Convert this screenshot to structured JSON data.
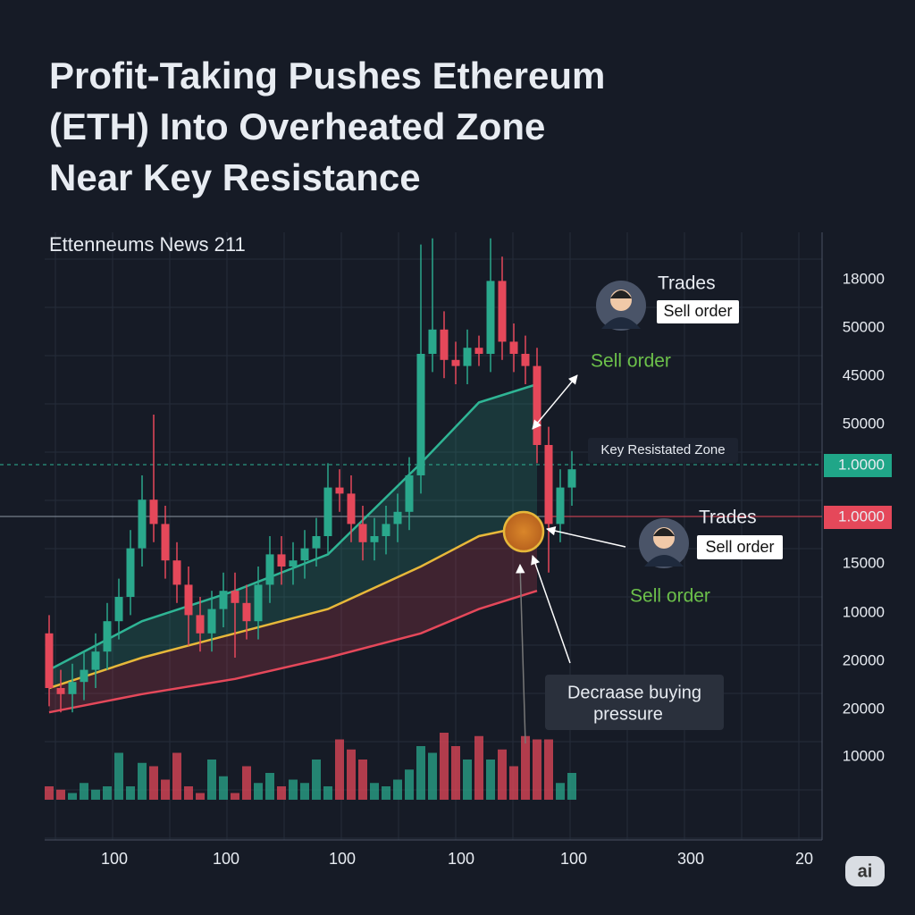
{
  "chart_data": {
    "type": "candlestick",
    "title": [
      "Profit-Taking Pushes Ethereum",
      "(ETH) Into Overheated Zone",
      "Near Key Resistance"
    ],
    "subtitle": "Ettenneums News 211",
    "ylim": [
      0,
      100
    ],
    "open": [
      34,
      25,
      24,
      26,
      28,
      31,
      36,
      40,
      48,
      56,
      52,
      46,
      42,
      37,
      34,
      38,
      41,
      39,
      36,
      42,
      47,
      45,
      46,
      48,
      50,
      58,
      57,
      52,
      49,
      50,
      52,
      54,
      60,
      80,
      84,
      79,
      78,
      81,
      80,
      92,
      82,
      80,
      78,
      65,
      52,
      58
    ],
    "high": [
      37,
      28,
      29,
      31,
      34,
      39,
      43,
      51,
      60,
      70,
      55,
      49,
      45,
      40,
      41,
      44,
      44,
      42,
      45,
      50,
      50,
      49,
      51,
      53,
      62,
      61,
      60,
      55,
      53,
      55,
      57,
      63,
      98,
      99,
      87,
      82,
      84,
      83,
      99,
      96,
      85,
      83,
      81,
      68,
      61,
      64
    ],
    "low": [
      22,
      21,
      21,
      23,
      25,
      28,
      33,
      37,
      45,
      49,
      43,
      39,
      32,
      31,
      31,
      35,
      30,
      33,
      33,
      39,
      42,
      42,
      43,
      45,
      47,
      54,
      49,
      46,
      46,
      47,
      49,
      51,
      57,
      77,
      76,
      75,
      75,
      78,
      77,
      79,
      77,
      75,
      62,
      44,
      49,
      55
    ],
    "close": [
      25,
      24,
      26,
      28,
      31,
      36,
      40,
      48,
      56,
      52,
      46,
      42,
      37,
      34,
      38,
      41,
      39,
      36,
      42,
      47,
      45,
      46,
      48,
      50,
      58,
      57,
      52,
      49,
      50,
      52,
      54,
      60,
      80,
      84,
      79,
      78,
      81,
      80,
      92,
      82,
      80,
      78,
      65,
      52,
      58,
      61
    ],
    "volume": [
      20,
      15,
      10,
      25,
      15,
      20,
      70,
      20,
      55,
      50,
      30,
      70,
      20,
      10,
      60,
      35,
      10,
      50,
      25,
      40,
      20,
      30,
      25,
      60,
      20,
      90,
      75,
      60,
      25,
      20,
      30,
      45,
      80,
      70,
      100,
      80,
      60,
      95,
      60,
      75,
      50,
      95,
      90,
      90,
      25,
      40
    ],
    "volume_lim": [
      0,
      100
    ],
    "up_color": "#2aa88c",
    "down_color": "#e5485a",
    "ma_x": [
      0,
      8,
      16,
      24,
      32,
      37,
      42
    ],
    "series": [
      {
        "color": "#2fb595",
        "values": [
          28,
          36,
          41,
          47,
          62,
          72,
          75
        ]
      },
      {
        "color": "#e7b83a",
        "values": [
          25,
          30,
          34,
          38,
          45,
          50,
          52
        ]
      },
      {
        "color": "#e5485a",
        "values": [
          21,
          24,
          26.5,
          30,
          34,
          38,
          41
        ]
      }
    ],
    "y_axis_labels": [
      "18000",
      "50000",
      "45000",
      "50000",
      "15000",
      "10000",
      "20000",
      "20000",
      "10000"
    ],
    "levels": [
      {
        "label": "1.0000",
        "color": "#20a688"
      },
      {
        "label": "1.0000",
        "color": "#e5485a"
      }
    ],
    "x_axis_labels": [
      "100",
      "100",
      "100",
      "100",
      "100",
      "300",
      "20"
    ],
    "annotations": {
      "trades_top": "Trades",
      "sell_box_top": "Sell order",
      "sell_green_top": "Sell order",
      "zone": "Key Resistated Zone",
      "trades_bottom": "Trades",
      "sell_box_bottom": "Sell order",
      "sell_green_bottom": "Sell order",
      "pressure": [
        "Decraase buying",
        "pressure"
      ],
      "logo": "ai"
    }
  }
}
